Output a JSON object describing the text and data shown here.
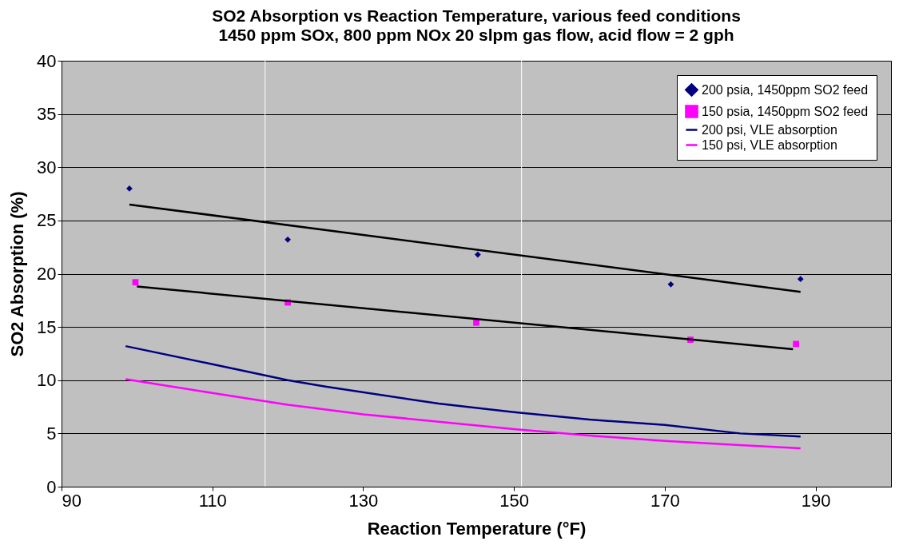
{
  "chart_data": {
    "type": "scatter",
    "title": "SO2 Absorption vs Reaction Temperature, various feed conditions",
    "subtitle": "1450 ppm SOx, 800 ppm NOx 20 slpm gas flow, acid flow = 2 gph",
    "xlabel": "Reaction Temperature (°F)",
    "ylabel": "SO2 Absorption (%)",
    "xlim": [
      90,
      200
    ],
    "xticks": [
      90,
      110,
      130,
      150,
      170,
      190
    ],
    "ylim": [
      0,
      40
    ],
    "yticks": [
      0,
      5,
      10,
      15,
      20,
      25,
      30,
      35,
      40
    ],
    "grid": "y",
    "legend": "top right",
    "ref_lines": [
      {
        "axis": "x",
        "value": 117,
        "label": null,
        "color": "#ffffff"
      },
      {
        "axis": "x",
        "value": 151,
        "label": null,
        "color": "#ffffff"
      }
    ],
    "series": [
      {
        "name": "200 psia, 1450ppm SO2 feed",
        "marker": "diamond",
        "color": "#000080",
        "x": [
          99,
          120,
          145.2,
          170.8,
          188
        ],
        "values": [
          28,
          23.2,
          21.8,
          19,
          19.5
        ]
      },
      {
        "name": "150 psia, 1450ppm SO2 feed",
        "marker": "square",
        "color": "#ff00ff",
        "x": [
          99.8,
          120,
          145,
          173.4,
          187.4
        ],
        "values": [
          19.2,
          17.3,
          15.4,
          13.8,
          13.4
        ]
      },
      {
        "name": "200 psi, VLE absorption",
        "type": "line",
        "marker": "none",
        "color": "#000080",
        "x": [
          98.5,
          110,
          120,
          125,
          140,
          150,
          160,
          170,
          180,
          188
        ],
        "values": [
          13.2,
          11.5,
          10,
          9.4,
          7.8,
          7,
          6.3,
          5.8,
          5,
          4.7
        ]
      },
      {
        "name": "150 psi, VLE absorption",
        "type": "line",
        "marker": "none",
        "color": "#ff00ff",
        "x": [
          98.5,
          110,
          120,
          130,
          140,
          150,
          160,
          170,
          180,
          188
        ],
        "values": [
          10.1,
          8.8,
          7.7,
          6.8,
          6.1,
          5.4,
          4.8,
          4.3,
          3.9,
          3.6
        ]
      },
      {
        "type": "line",
        "marker": "none",
        "color": "#000000",
        "x": [
          99,
          188
        ],
        "values": [
          26.5,
          18.3
        ]
      },
      {
        "type": "line",
        "marker": "none",
        "color": "#000000",
        "x": [
          100,
          187
        ],
        "values": [
          18.8,
          12.9
        ]
      }
    ]
  }
}
